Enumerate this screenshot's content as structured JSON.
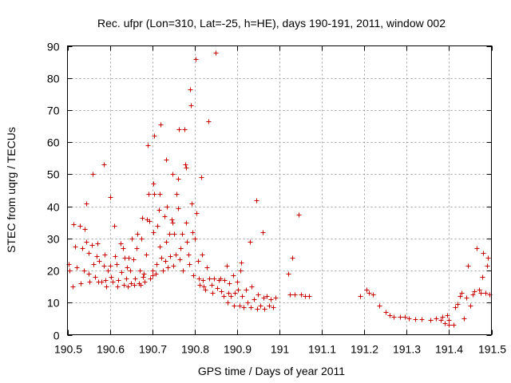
{
  "chart_data": {
    "type": "scatter",
    "title": "Rec. ufpr (Lon=310, Lat=-25, h=HE), days 190-191, 2011, window 002",
    "xlabel": "GPS time / Days of year 2011",
    "ylabel": "STEC from uqrg / TECUs",
    "xlim": [
      190.5,
      191.5
    ],
    "ylim": [
      0,
      90
    ],
    "xticks": [
      190.5,
      190.6,
      190.7,
      190.8,
      190.9,
      191.0,
      191.1,
      191.2,
      191.3,
      191.4,
      191.5
    ],
    "xtick_labels": [
      "190.5",
      "190.6",
      "190.7",
      "190.8",
      "190.9",
      "191",
      "191.1",
      "191.2",
      "191.3",
      "191.4",
      "191.5"
    ],
    "yticks": [
      0,
      10,
      20,
      30,
      40,
      50,
      60,
      70,
      80,
      90
    ],
    "ytick_labels": [
      "0",
      "10",
      "20",
      "30",
      "40",
      "50",
      "60",
      "70",
      "80",
      "90"
    ],
    "grid": true,
    "marker": "+",
    "color": "#cc0000",
    "series": [
      {
        "name": "STEC",
        "points": [
          [
            190.502,
            22
          ],
          [
            190.505,
            20
          ],
          [
            190.512,
            15
          ],
          [
            190.515,
            34.5
          ],
          [
            190.518,
            27.5
          ],
          [
            190.522,
            21
          ],
          [
            190.53,
            34
          ],
          [
            190.532,
            16
          ],
          [
            190.535,
            27
          ],
          [
            190.538,
            20
          ],
          [
            190.54,
            33
          ],
          [
            190.545,
            41
          ],
          [
            190.545,
            29
          ],
          [
            190.55,
            19
          ],
          [
            190.55,
            25.5
          ],
          [
            190.552,
            16.5
          ],
          [
            190.558,
            28
          ],
          [
            190.56,
            50
          ],
          [
            190.562,
            22
          ],
          [
            190.565,
            18
          ],
          [
            190.568,
            24.5
          ],
          [
            190.57,
            28.5
          ],
          [
            190.572,
            16.5
          ],
          [
            190.575,
            23
          ],
          [
            190.58,
            16.5
          ],
          [
            190.585,
            53
          ],
          [
            190.585,
            21.5
          ],
          [
            190.588,
            25
          ],
          [
            190.59,
            17
          ],
          [
            190.592,
            15
          ],
          [
            190.595,
            20
          ],
          [
            190.6,
            43
          ],
          [
            190.6,
            21.5
          ],
          [
            190.603,
            18
          ],
          [
            190.607,
            16.5
          ],
          [
            190.61,
            34
          ],
          [
            190.612,
            24.5
          ],
          [
            190.615,
            22
          ],
          [
            190.618,
            15
          ],
          [
            190.62,
            17
          ],
          [
            190.625,
            28.5
          ],
          [
            190.627,
            19.5
          ],
          [
            190.63,
            27
          ],
          [
            190.632,
            15.5
          ],
          [
            190.635,
            24
          ],
          [
            190.638,
            17.5
          ],
          [
            190.64,
            21
          ],
          [
            190.642,
            15
          ],
          [
            190.645,
            24
          ],
          [
            190.648,
            20
          ],
          [
            190.65,
            16
          ],
          [
            190.652,
            30
          ],
          [
            190.655,
            23.5
          ],
          [
            190.658,
            15.5
          ],
          [
            190.66,
            17.5
          ],
          [
            190.662,
            27
          ],
          [
            190.665,
            31.5
          ],
          [
            190.668,
            16
          ],
          [
            190.67,
            20
          ],
          [
            190.672,
            15.5
          ],
          [
            190.675,
            30
          ],
          [
            190.677,
            36.5
          ],
          [
            190.678,
            18
          ],
          [
            190.68,
            19
          ],
          [
            190.682,
            16.5
          ],
          [
            190.685,
            25
          ],
          [
            190.688,
            36
          ],
          [
            190.69,
            59
          ],
          [
            190.692,
            44
          ],
          [
            190.693,
            35.5
          ],
          [
            190.695,
            17.5
          ],
          [
            190.7,
            18.5
          ],
          [
            190.7,
            20
          ],
          [
            190.702,
            32
          ],
          [
            190.703,
            47
          ],
          [
            190.705,
            62
          ],
          [
            190.705,
            44
          ],
          [
            190.708,
            19
          ],
          [
            190.71,
            22
          ],
          [
            190.712,
            34
          ],
          [
            190.715,
            39
          ],
          [
            190.718,
            27.5
          ],
          [
            190.718,
            44
          ],
          [
            190.72,
            65.5
          ],
          [
            190.722,
            24
          ],
          [
            190.725,
            20
          ],
          [
            190.728,
            37
          ],
          [
            190.73,
            23
          ],
          [
            190.732,
            29
          ],
          [
            190.733,
            54.5
          ],
          [
            190.735,
            40
          ],
          [
            190.737,
            21
          ],
          [
            190.74,
            31.5
          ],
          [
            190.742,
            24.5
          ],
          [
            190.745,
            36
          ],
          [
            190.747,
            35
          ],
          [
            190.748,
            50
          ],
          [
            190.75,
            21.5
          ],
          [
            190.752,
            31.5
          ],
          [
            190.755,
            25
          ],
          [
            190.758,
            44
          ],
          [
            190.76,
            48.5
          ],
          [
            190.76,
            39.5
          ],
          [
            190.762,
            64
          ],
          [
            190.765,
            23.5
          ],
          [
            190.767,
            27
          ],
          [
            190.77,
            31.5
          ],
          [
            190.773,
            20
          ],
          [
            190.776,
            64
          ],
          [
            190.778,
            53
          ],
          [
            190.779,
            52
          ],
          [
            190.78,
            35
          ],
          [
            190.782,
            29
          ],
          [
            190.785,
            25
          ],
          [
            190.787,
            22
          ],
          [
            190.79,
            76.5
          ],
          [
            190.791,
            71.5
          ],
          [
            190.792,
            41
          ],
          [
            190.795,
            32
          ],
          [
            190.797,
            18.5
          ],
          [
            190.8,
            30
          ],
          [
            190.802,
            86
          ],
          [
            190.805,
            38
          ],
          [
            190.807,
            23
          ],
          [
            190.81,
            17.5
          ],
          [
            190.812,
            15.5
          ],
          [
            190.815,
            49
          ],
          [
            190.817,
            25
          ],
          [
            190.82,
            17
          ],
          [
            190.822,
            15
          ],
          [
            190.825,
            14
          ],
          [
            190.828,
            21
          ],
          [
            190.832,
            66.5
          ],
          [
            190.835,
            17.5
          ],
          [
            190.84,
            15.5
          ],
          [
            190.842,
            13
          ],
          [
            190.845,
            17.5
          ],
          [
            190.85,
            88
          ],
          [
            190.853,
            14.5
          ],
          [
            190.857,
            17
          ],
          [
            190.86,
            17.5
          ],
          [
            190.862,
            13.5
          ],
          [
            190.868,
            12
          ],
          [
            190.87,
            17
          ],
          [
            190.875,
            21.5
          ],
          [
            190.877,
            10
          ],
          [
            190.88,
            13
          ],
          [
            190.882,
            16
          ],
          [
            190.885,
            12
          ],
          [
            190.89,
            18.5
          ],
          [
            190.892,
            9
          ],
          [
            190.895,
            13
          ],
          [
            190.9,
            16.5
          ],
          [
            190.902,
            14
          ],
          [
            190.905,
            9
          ],
          [
            190.908,
            20
          ],
          [
            190.91,
            22.5
          ],
          [
            190.912,
            12
          ],
          [
            190.915,
            8.5
          ],
          [
            190.92,
            14
          ],
          [
            190.925,
            10
          ],
          [
            190.93,
            29
          ],
          [
            190.932,
            8.5
          ],
          [
            190.935,
            15
          ],
          [
            190.94,
            11
          ],
          [
            190.945,
            42
          ],
          [
            190.947,
            8
          ],
          [
            190.95,
            12.5
          ],
          [
            190.955,
            9
          ],
          [
            190.96,
            32
          ],
          [
            190.962,
            11.5
          ],
          [
            190.965,
            8
          ],
          [
            190.97,
            12
          ],
          [
            190.975,
            9
          ],
          [
            190.98,
            11
          ],
          [
            190.985,
            8.5
          ],
          [
            190.99,
            11.5
          ],
          [
            191.02,
            19
          ],
          [
            191.025,
            12.5
          ],
          [
            191.03,
            24
          ],
          [
            191.035,
            12.5
          ],
          [
            191.045,
            37.5
          ],
          [
            191.05,
            12.5
          ],
          [
            191.06,
            12
          ],
          [
            191.07,
            12
          ],
          [
            191.19,
            12
          ],
          [
            191.205,
            14
          ],
          [
            191.21,
            13
          ],
          [
            191.22,
            12.5
          ],
          [
            191.235,
            9
          ],
          [
            191.25,
            7
          ],
          [
            191.26,
            6
          ],
          [
            191.27,
            5.5
          ],
          [
            191.285,
            5.5
          ],
          [
            191.295,
            5.5
          ],
          [
            191.305,
            5
          ],
          [
            191.32,
            4.8
          ],
          [
            191.335,
            4.8
          ],
          [
            191.355,
            4.5
          ],
          [
            191.37,
            5
          ],
          [
            191.38,
            4.5
          ],
          [
            191.385,
            5.5
          ],
          [
            191.39,
            3.5
          ],
          [
            191.395,
            6
          ],
          [
            191.4,
            3
          ],
          [
            191.4,
            4.5
          ],
          [
            191.41,
            3
          ],
          [
            191.415,
            8.5
          ],
          [
            191.42,
            9.5
          ],
          [
            191.425,
            12
          ],
          [
            191.43,
            13
          ],
          [
            191.435,
            5
          ],
          [
            191.44,
            11.5
          ],
          [
            191.445,
            21.5
          ],
          [
            191.45,
            9
          ],
          [
            191.455,
            12.5
          ],
          [
            191.46,
            13.5
          ],
          [
            191.465,
            27
          ],
          [
            191.47,
            14
          ],
          [
            191.475,
            13
          ],
          [
            191.478,
            18
          ],
          [
            191.48,
            25.5
          ],
          [
            191.485,
            13
          ],
          [
            191.49,
            21.5
          ],
          [
            191.492,
            24
          ],
          [
            191.495,
            12.5
          ]
        ]
      }
    ]
  }
}
